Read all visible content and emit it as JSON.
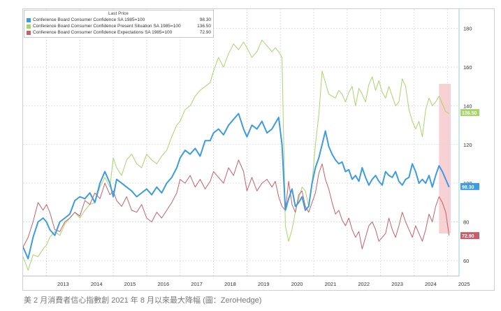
{
  "chart_data": {
    "type": "line",
    "legend_title": "Last Price",
    "x_ticks": [
      "2013",
      "2014",
      "2015",
      "2016",
      "2017",
      "2018",
      "2019",
      "2020",
      "2021",
      "2022",
      "2023",
      "2024",
      "2025"
    ],
    "y_ticks": [
      60,
      80,
      100,
      120,
      140,
      160,
      180
    ],
    "ylim": [
      52,
      190
    ],
    "xlim": [
      2012.3,
      2025.35
    ],
    "grid": true,
    "highlight_region": {
      "start": 2024.75,
      "end": 2025.1,
      "color": "#f6c9cc"
    },
    "series": [
      {
        "name": "Conference Board Consumer Confidence SA 1985=100",
        "last_value": "98.30",
        "color": "#3d9be0",
        "x": [
          2012.3,
          2012.45,
          2012.6,
          2012.75,
          2012.9,
          2013.0,
          2013.1,
          2013.25,
          2013.4,
          2013.55,
          2013.7,
          2013.85,
          2014.0,
          2014.15,
          2014.3,
          2014.45,
          2014.6,
          2014.75,
          2014.9,
          2015.0,
          2015.1,
          2015.25,
          2015.4,
          2015.55,
          2015.7,
          2015.85,
          2016.0,
          2016.15,
          2016.3,
          2016.45,
          2016.6,
          2016.75,
          2016.9,
          2017.0,
          2017.15,
          2017.3,
          2017.45,
          2017.6,
          2017.75,
          2017.9,
          2018.0,
          2018.15,
          2018.3,
          2018.45,
          2018.6,
          2018.75,
          2018.9,
          2019.0,
          2019.15,
          2019.3,
          2019.45,
          2019.6,
          2019.75,
          2019.85,
          2019.95,
          2020.05,
          2020.15,
          2020.25,
          2020.35,
          2020.45,
          2020.55,
          2020.65,
          2020.75,
          2020.85,
          2020.95,
          2021.05,
          2021.15,
          2021.25,
          2021.35,
          2021.45,
          2021.55,
          2021.65,
          2021.75,
          2021.85,
          2021.95,
          2022.05,
          2022.15,
          2022.25,
          2022.35,
          2022.45,
          2022.55,
          2022.65,
          2022.75,
          2022.85,
          2022.95,
          2023.05,
          2023.15,
          2023.25,
          2023.35,
          2023.45,
          2023.55,
          2023.65,
          2023.75,
          2023.85,
          2023.95,
          2024.05,
          2024.15,
          2024.25,
          2024.35,
          2024.45,
          2024.55,
          2024.65,
          2024.75,
          2024.85,
          2024.95,
          2025.05
        ],
        "y": [
          67,
          61,
          72,
          80,
          82,
          80,
          76,
          73,
          80,
          82,
          84,
          91,
          93,
          92,
          95,
          90,
          100,
          106,
          100,
          93,
          102,
          100,
          98,
          96,
          93,
          95,
          97,
          94,
          98,
          95,
          100,
          103,
          108,
          113,
          117,
          115,
          118,
          114,
          122,
          122,
          126,
          128,
          125,
          130,
          133,
          136,
          128,
          124,
          130,
          128,
          132,
          126,
          128,
          131,
          134,
          120,
          86,
          92,
          97,
          88,
          90,
          93,
          86,
          88,
          100,
          108,
          113,
          120,
          127,
          119,
          115,
          112,
          110,
          111,
          106,
          107,
          102,
          104,
          101,
          108,
          103,
          99,
          102,
          104,
          101,
          99,
          106,
          104,
          103,
          106,
          101,
          99,
          102,
          103,
          110,
          106,
          100,
          102,
          100,
          104,
          98,
          104,
          109,
          106,
          102,
          98
        ]
      },
      {
        "name": "Conference Board Consumer Confidence Present Situation SA 1985=100",
        "last_value": "136.50",
        "color": "#a9d46a",
        "x": [
          2012.3,
          2012.45,
          2012.6,
          2012.75,
          2012.9,
          2013.0,
          2013.1,
          2013.25,
          2013.4,
          2013.55,
          2013.7,
          2013.85,
          2014.0,
          2014.15,
          2014.3,
          2014.45,
          2014.6,
          2014.75,
          2014.9,
          2015.0,
          2015.1,
          2015.25,
          2015.4,
          2015.55,
          2015.7,
          2015.85,
          2016.0,
          2016.15,
          2016.3,
          2016.45,
          2016.6,
          2016.75,
          2016.9,
          2017.0,
          2017.15,
          2017.3,
          2017.45,
          2017.6,
          2017.75,
          2017.9,
          2018.0,
          2018.15,
          2018.3,
          2018.45,
          2018.6,
          2018.75,
          2018.9,
          2019.0,
          2019.15,
          2019.3,
          2019.45,
          2019.6,
          2019.75,
          2019.85,
          2019.95,
          2020.05,
          2020.15,
          2020.25,
          2020.35,
          2020.45,
          2020.55,
          2020.65,
          2020.75,
          2020.85,
          2020.95,
          2021.05,
          2021.15,
          2021.25,
          2021.35,
          2021.45,
          2021.55,
          2021.65,
          2021.75,
          2021.85,
          2021.95,
          2022.05,
          2022.15,
          2022.25,
          2022.35,
          2022.45,
          2022.55,
          2022.65,
          2022.75,
          2022.85,
          2022.95,
          2023.05,
          2023.15,
          2023.25,
          2023.35,
          2023.45,
          2023.55,
          2023.65,
          2023.75,
          2023.85,
          2023.95,
          2024.05,
          2024.15,
          2024.25,
          2024.35,
          2024.45,
          2024.55,
          2024.65,
          2024.75,
          2024.85,
          2024.95,
          2025.05
        ],
        "y": [
          62,
          55,
          63,
          62,
          66,
          68,
          72,
          75,
          73,
          79,
          82,
          85,
          82,
          86,
          89,
          90,
          98,
          103,
          98,
          113,
          108,
          104,
          112,
          115,
          110,
          108,
          115,
          112,
          110,
          114,
          117,
          124,
          130,
          132,
          138,
          140,
          145,
          148,
          150,
          152,
          158,
          165,
          160,
          167,
          172,
          169,
          173,
          170,
          165,
          168,
          174,
          171,
          168,
          170,
          168,
          165,
          78,
          70,
          76,
          85,
          92,
          98,
          96,
          88,
          100,
          120,
          135,
          158,
          152,
          146,
          145,
          144,
          148,
          146,
          142,
          147,
          150,
          140,
          149,
          146,
          142,
          151,
          155,
          148,
          153,
          147,
          144,
          150,
          145,
          140,
          142,
          154,
          150,
          138,
          132,
          128,
          132,
          124,
          138,
          144,
          140,
          142,
          145,
          141,
          137,
          136
        ]
      },
      {
        "name": "Conference Board Consumer Confidence Expectations SA 1985=100",
        "last_value": "72.90",
        "color": "#c4606c",
        "x": [
          2012.3,
          2012.45,
          2012.6,
          2012.75,
          2012.9,
          2013.0,
          2013.1,
          2013.25,
          2013.4,
          2013.55,
          2013.7,
          2013.85,
          2014.0,
          2014.15,
          2014.3,
          2014.45,
          2014.6,
          2014.75,
          2014.9,
          2015.0,
          2015.1,
          2015.25,
          2015.4,
          2015.55,
          2015.7,
          2015.85,
          2016.0,
          2016.15,
          2016.3,
          2016.45,
          2016.6,
          2016.75,
          2016.9,
          2017.0,
          2017.15,
          2017.3,
          2017.45,
          2017.6,
          2017.75,
          2017.9,
          2018.0,
          2018.15,
          2018.3,
          2018.45,
          2018.6,
          2018.75,
          2018.9,
          2019.0,
          2019.15,
          2019.3,
          2019.45,
          2019.6,
          2019.75,
          2019.85,
          2019.95,
          2020.05,
          2020.15,
          2020.25,
          2020.35,
          2020.45,
          2020.55,
          2020.65,
          2020.75,
          2020.85,
          2020.95,
          2021.05,
          2021.15,
          2021.25,
          2021.35,
          2021.45,
          2021.55,
          2021.65,
          2021.75,
          2021.85,
          2021.95,
          2022.05,
          2022.15,
          2022.25,
          2022.35,
          2022.45,
          2022.55,
          2022.65,
          2022.75,
          2022.85,
          2022.95,
          2023.05,
          2023.15,
          2023.25,
          2023.35,
          2023.45,
          2023.55,
          2023.65,
          2023.75,
          2023.85,
          2023.95,
          2024.05,
          2024.15,
          2024.25,
          2024.35,
          2024.45,
          2024.55,
          2024.65,
          2024.75,
          2024.85,
          2024.95,
          2025.05
        ],
        "y": [
          67,
          72,
          80,
          90,
          86,
          89,
          85,
          76,
          75,
          80,
          82,
          85,
          83,
          91,
          89,
          95,
          92,
          100,
          94,
          96,
          91,
          88,
          93,
          86,
          85,
          89,
          82,
          80,
          85,
          82,
          86,
          90,
          95,
          102,
          100,
          104,
          98,
          102,
          97,
          101,
          106,
          103,
          100,
          108,
          104,
          112,
          106,
          96,
          103,
          96,
          100,
          102,
          98,
          101,
          93,
          88,
          86,
          101,
          89,
          85,
          94,
          96,
          88,
          85,
          90,
          95,
          105,
          110,
          102,
          97,
          90,
          84,
          86,
          81,
          78,
          82,
          76,
          72,
          75,
          66,
          72,
          78,
          80,
          76,
          70,
          72,
          74,
          82,
          76,
          72,
          78,
          85,
          80,
          76,
          72,
          78,
          74,
          70,
          76,
          84,
          80,
          88,
          93,
          90,
          85,
          73
        ]
      }
    ]
  },
  "caption": "美 2 月消費者信心指數創 2021 年 8 月以來最大降幅 (圖：ZeroHedge)"
}
